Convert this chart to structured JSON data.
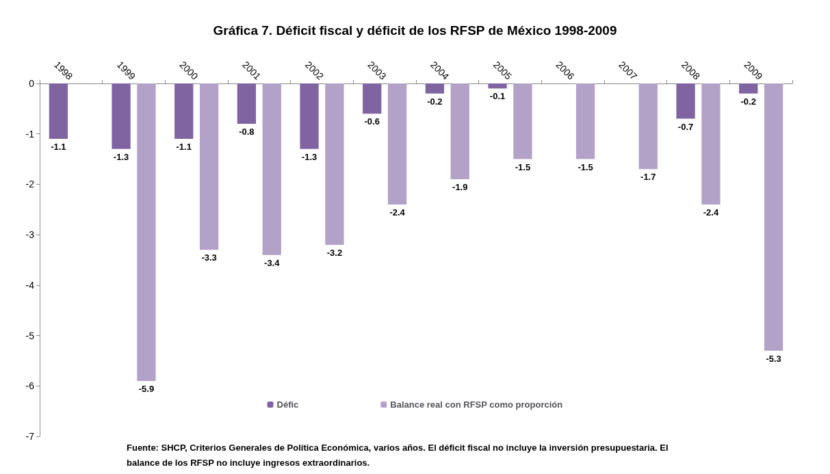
{
  "chart_data": {
    "type": "bar",
    "title": "Gráfica 7. Déficit fiscal y déficit de los RFSP de México 1998-2009",
    "categories": [
      "1998",
      "1999",
      "2000",
      "2001",
      "2002",
      "2003",
      "2004",
      "2005",
      "2006",
      "2007",
      "2008",
      "2009"
    ],
    "series": [
      {
        "name": "Défic",
        "color": "#8064a2",
        "values": [
          -1.1,
          -1.3,
          -1.1,
          -0.8,
          -1.3,
          -0.6,
          -0.2,
          -0.1,
          null,
          null,
          -0.7,
          -0.2
        ]
      },
      {
        "name": "Balance real con RFSP como proporción",
        "color": "#b3a2c7",
        "values": [
          null,
          -5.9,
          -3.3,
          -3.4,
          -3.2,
          -2.4,
          -1.9,
          -1.5,
          -1.5,
          -1.7,
          -2.4,
          -5.3
        ]
      }
    ],
    "ylim": [
      -7,
      0
    ],
    "yticks": [
      -7,
      -6,
      -5,
      -4,
      -3,
      -2,
      -1,
      0
    ],
    "grid": false,
    "legend": "bottom",
    "data_labels": true,
    "annotations": [
      "Fuente: SHCP, Criterios Generales de Política Económica, varios años. El déficit fiscal no incluye la inversión presupuestaria. El balance de los RFSP no incluye ingresos extraordinarios."
    ]
  }
}
